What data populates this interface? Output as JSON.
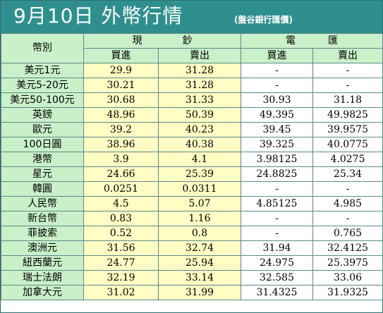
{
  "header": {
    "title": "9月10日 外幣行情",
    "subtitle": "(盤谷銀行匯價)"
  },
  "table": {
    "corner_label": "幣別",
    "cash_group": [
      "現",
      "鈔"
    ],
    "tt_group": [
      "電",
      "匯"
    ],
    "buy_label": "買進",
    "sell_label": "賣出",
    "rows": [
      {
        "name": "美元1元",
        "cash_buy": "29.9",
        "cash_sell": "31.28",
        "tt_buy": "-",
        "tt_sell": "-"
      },
      {
        "name": "美元5-20元",
        "cash_buy": "30.21",
        "cash_sell": "31.28",
        "tt_buy": "-",
        "tt_sell": "-"
      },
      {
        "name": "美元50-100元",
        "cash_buy": "30.68",
        "cash_sell": "31.33",
        "tt_buy": "30.93",
        "tt_sell": "31.18"
      },
      {
        "name": "英鎊",
        "cash_buy": "48.96",
        "cash_sell": "50.39",
        "tt_buy": "49.395",
        "tt_sell": "49.9825"
      },
      {
        "name": "歐元",
        "cash_buy": "39.2",
        "cash_sell": "40.23",
        "tt_buy": "39.45",
        "tt_sell": "39.9575"
      },
      {
        "name": "100日圓",
        "cash_buy": "38.96",
        "cash_sell": "40.38",
        "tt_buy": "39.325",
        "tt_sell": "40.0775"
      },
      {
        "name": "港幣",
        "cash_buy": "3.9",
        "cash_sell": "4.1",
        "tt_buy": "3.98125",
        "tt_sell": "4.0275"
      },
      {
        "name": "星元",
        "cash_buy": "24.66",
        "cash_sell": "25.39",
        "tt_buy": "24.8825",
        "tt_sell": "25.34"
      },
      {
        "name": "韓圓",
        "cash_buy": "0.0251",
        "cash_sell": "0.0311",
        "tt_buy": "-",
        "tt_sell": "-"
      },
      {
        "name": "人民幣",
        "cash_buy": "4.5",
        "cash_sell": "5.07",
        "tt_buy": "4.85125",
        "tt_sell": "4.985"
      },
      {
        "name": "新台幣",
        "cash_buy": "0.83",
        "cash_sell": "1.16",
        "tt_buy": "-",
        "tt_sell": "-"
      },
      {
        "name": "菲披索",
        "cash_buy": "0.52",
        "cash_sell": "0.8",
        "tt_buy": "-",
        "tt_sell": "0.765"
      },
      {
        "name": "澳洲元",
        "cash_buy": "31.56",
        "cash_sell": "32.74",
        "tt_buy": "31.94",
        "tt_sell": "32.4125"
      },
      {
        "name": "紐西蘭元",
        "cash_buy": "24.77",
        "cash_sell": "25.94",
        "tt_buy": "24.975",
        "tt_sell": "25.3975"
      },
      {
        "name": "瑞士法朗",
        "cash_buy": "32.19",
        "cash_sell": "33.14",
        "tt_buy": "32.585",
        "tt_sell": "33.06"
      },
      {
        "name": "加拿大元",
        "cash_buy": "31.02",
        "cash_sell": "31.99",
        "tt_buy": "31.4325",
        "tt_sell": "31.9325"
      }
    ]
  }
}
